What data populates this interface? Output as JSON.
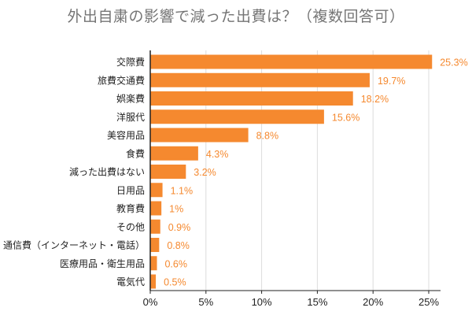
{
  "chart_data": {
    "type": "bar",
    "orientation": "horizontal",
    "title": "外出自粛の影響で減った出費は？（複数回答可）",
    "categories": [
      "交際費",
      "旅費交通費",
      "娯楽費",
      "洋服代",
      "美容用品",
      "食費",
      "減った出費はない",
      "日用品",
      "教育費",
      "その他",
      "通信費（インターネット・電話）",
      "医療用品・衛生用品",
      "電気代"
    ],
    "values": [
      25.3,
      19.7,
      18.2,
      15.6,
      8.8,
      4.3,
      3.2,
      1.1,
      1,
      0.9,
      0.8,
      0.6,
      0.5
    ],
    "value_labels": [
      "25.3%",
      "19.7%",
      "18.2%",
      "15.6%",
      "8.8%",
      "4.3%",
      "3.2%",
      "1.1%",
      "1%",
      "0.9%",
      "0.8%",
      "0.6%",
      "0.5%"
    ],
    "xlim": [
      0,
      25
    ],
    "xticks": [
      "0%",
      "5%",
      "10%",
      "15%",
      "20%",
      "25%"
    ],
    "grid": true,
    "legend": "none",
    "bar_color": "#f5892f",
    "label_color": "#f5892f",
    "grid_color": "#dcdcdc",
    "axis_color": "#222222",
    "title_color": "#757575"
  }
}
